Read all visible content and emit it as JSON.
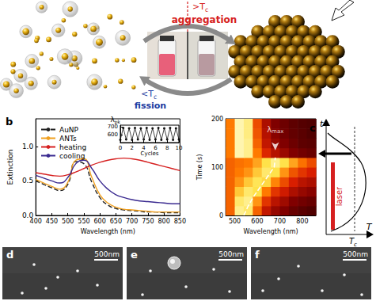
{
  "schematic": {
    "heat": {
      "text": ">T",
      "sub": "c",
      "label": "aggregation"
    },
    "cool": {
      "text": "<T",
      "sub": "c",
      "label": "fission"
    }
  },
  "chart_data": [
    {
      "type": "line",
      "title": "b",
      "xlabel": "Wavelength (nm)",
      "ylabel": "Extinction",
      "x": [
        400,
        425,
        450,
        475,
        500,
        525,
        550,
        575,
        600,
        625,
        650,
        675,
        700,
        725,
        750,
        775,
        800,
        825,
        850
      ],
      "xlim": [
        400,
        850
      ],
      "xticks": [
        400,
        450,
        500,
        550,
        600,
        650,
        700,
        750,
        800,
        850
      ],
      "ylim": [
        0,
        1.4
      ],
      "yticks": [
        {
          "value": 0,
          "label": "0.0"
        },
        0.5,
        {
          "value": 1,
          "label": "1.0"
        }
      ],
      "legend": "upper left",
      "series": [
        {
          "name": "AuNP",
          "color": "#222222",
          "line_style": "dashed",
          "values": [
            0.5,
            0.45,
            0.4,
            0.36,
            0.45,
            0.78,
            0.75,
            0.48,
            0.26,
            0.15,
            0.1,
            0.08,
            0.07,
            0.06,
            0.05,
            0.05,
            0.04,
            0.04,
            0.04
          ]
        },
        {
          "name": "ANTs",
          "color": "#f0a020",
          "line_style": "solid",
          "values": [
            0.52,
            0.47,
            0.42,
            0.38,
            0.48,
            0.8,
            0.82,
            0.55,
            0.3,
            0.18,
            0.12,
            0.09,
            0.08,
            0.07,
            0.06,
            0.05,
            0.05,
            0.05,
            0.05
          ]
        },
        {
          "name": "heating",
          "color": "#d62020",
          "line_style": "solid",
          "values": [
            0.62,
            0.6,
            0.58,
            0.57,
            0.59,
            0.63,
            0.68,
            0.73,
            0.77,
            0.8,
            0.82,
            0.83,
            0.82,
            0.8,
            0.77,
            0.74,
            0.71,
            0.68,
            0.65
          ]
        },
        {
          "name": "cooling",
          "color": "#3a2a90",
          "line_style": "solid",
          "values": [
            0.58,
            0.54,
            0.5,
            0.47,
            0.55,
            0.75,
            0.8,
            0.68,
            0.5,
            0.38,
            0.3,
            0.26,
            0.23,
            0.21,
            0.2,
            0.19,
            0.18,
            0.17,
            0.17
          ]
        }
      ]
    },
    {
      "type": "line",
      "xlabel": "Cycles",
      "ylabel": {
        "text": "λ",
        "sub": "pk"
      },
      "x": [
        0,
        0.5,
        1,
        1.5,
        2,
        2.5,
        3,
        3.5,
        4,
        4.5,
        5,
        5.5,
        6,
        6.5,
        7,
        7.5,
        8,
        8.5,
        9,
        9.5,
        10
      ],
      "xlim": [
        0,
        10
      ],
      "xticks": [
        0,
        2,
        4,
        6,
        8,
        10
      ],
      "ylim": [
        500,
        720
      ],
      "yticks": [
        600,
        700
      ],
      "marker": "circle",
      "series": [
        {
          "color": "#111111",
          "values": [
            535,
            685,
            540,
            680,
            535,
            685,
            540,
            680,
            540,
            685,
            535,
            680,
            540,
            685,
            535,
            680,
            540,
            685,
            535,
            680,
            540
          ]
        }
      ]
    },
    {
      "type": "heatmap",
      "title": "c",
      "xlabel": "Wavelength (nm)",
      "ylabel": "Time (s)",
      "xlim": [
        460,
        860
      ],
      "xticks": [
        500,
        600,
        700,
        800
      ],
      "ylim": [
        0,
        200
      ],
      "yticks": [
        0,
        100,
        200
      ],
      "x_edges": [
        460,
        500,
        540,
        580,
        620,
        660,
        700,
        740,
        780,
        820,
        860
      ],
      "y_edges": [
        0,
        20,
        40,
        60,
        80,
        100,
        120,
        140,
        160,
        180,
        200
      ],
      "zlim": [
        0,
        1
      ],
      "cells": [
        [
          0.55,
          0.9,
          0.85,
          0.55,
          0.35,
          0.25,
          0.2,
          0.15,
          0.12,
          0.1
        ],
        [
          0.55,
          0.85,
          0.9,
          0.65,
          0.45,
          0.33,
          0.27,
          0.2,
          0.17,
          0.15
        ],
        [
          0.55,
          0.75,
          0.85,
          0.8,
          0.6,
          0.45,
          0.38,
          0.3,
          0.25,
          0.22
        ],
        [
          0.55,
          0.65,
          0.75,
          0.82,
          0.78,
          0.62,
          0.5,
          0.4,
          0.33,
          0.3
        ],
        [
          0.55,
          0.6,
          0.65,
          0.75,
          0.85,
          0.8,
          0.65,
          0.52,
          0.45,
          0.4
        ],
        [
          0.55,
          0.58,
          0.6,
          0.68,
          0.8,
          0.9,
          0.8,
          0.68,
          0.58,
          0.5
        ],
        [
          0.6,
          0.95,
          0.9,
          0.6,
          0.42,
          0.32,
          0.26,
          0.2,
          0.17,
          0.15
        ],
        [
          0.6,
          0.95,
          0.9,
          0.55,
          0.35,
          0.25,
          0.2,
          0.16,
          0.13,
          0.12
        ],
        [
          0.6,
          0.95,
          0.88,
          0.52,
          0.32,
          0.22,
          0.17,
          0.14,
          0.12,
          0.1
        ],
        [
          0.6,
          0.95,
          0.88,
          0.5,
          0.3,
          0.2,
          0.16,
          0.13,
          0.11,
          0.1
        ]
      ],
      "lambda_max": {
        "x": [
          540,
          560,
          585,
          615,
          645,
          675,
          680
        ],
        "y": [
          0,
          20,
          40,
          60,
          80,
          100,
          120
        ],
        "color": "#ffffff",
        "line_style": "dashed"
      },
      "annotation": {
        "text": "λ",
        "sub": "max"
      }
    }
  ],
  "temperature_plot": {
    "t_axis": "t",
    "T_axis": "T",
    "threshold": {
      "text": "T",
      "sub": "c"
    },
    "bar_label": "laser"
  },
  "sem_panels": [
    {
      "label": "d",
      "scale_bar": "500nm"
    },
    {
      "label": "e",
      "scale_bar": "500nm"
    },
    {
      "label": "f",
      "scale_bar": "500nm"
    }
  ]
}
